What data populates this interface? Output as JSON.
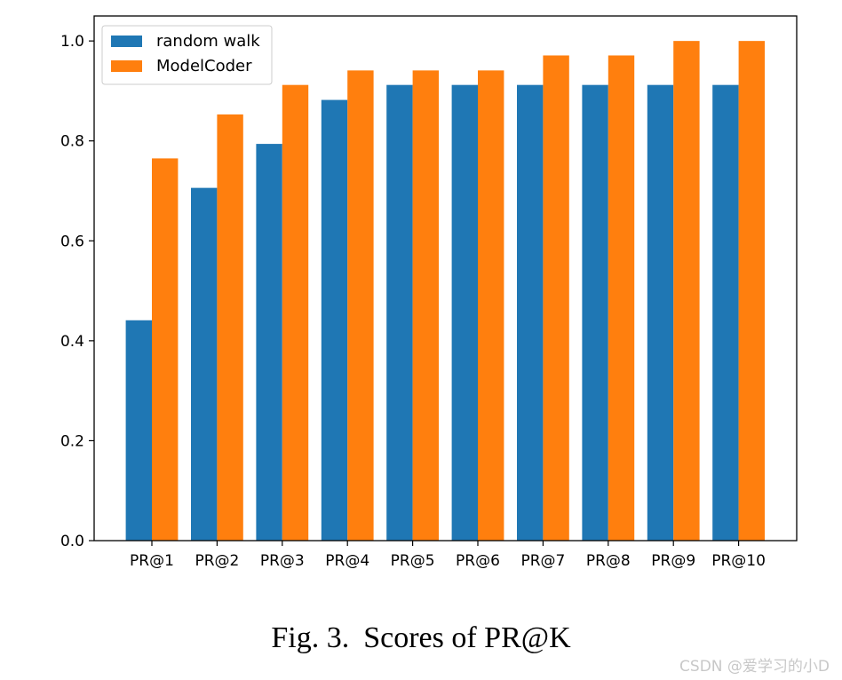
{
  "chart_data": {
    "type": "bar",
    "categories": [
      "PR@1",
      "PR@2",
      "PR@3",
      "PR@4",
      "PR@5",
      "PR@6",
      "PR@7",
      "PR@8",
      "PR@9",
      "PR@10"
    ],
    "series": [
      {
        "name": "random walk",
        "color": "#1f77b4",
        "values": [
          0.441,
          0.706,
          0.794,
          0.882,
          0.912,
          0.912,
          0.912,
          0.912,
          0.912,
          0.912
        ]
      },
      {
        "name": "ModelCoder",
        "color": "#ff7f0e",
        "values": [
          0.765,
          0.853,
          0.912,
          0.941,
          0.941,
          0.941,
          0.971,
          0.971,
          1.0,
          1.0
        ]
      }
    ],
    "yticks": [
      "0.0",
      "0.2",
      "0.4",
      "0.6",
      "0.8",
      "1.0"
    ],
    "ylim": [
      0,
      1.05
    ],
    "xlabel": "",
    "ylabel": "",
    "legend_position": "top-left",
    "grid": false
  },
  "caption": {
    "figure_label": "Fig. 3.",
    "title": "Scores of PR@K"
  },
  "watermark": "CSDN @爱学习的小D"
}
